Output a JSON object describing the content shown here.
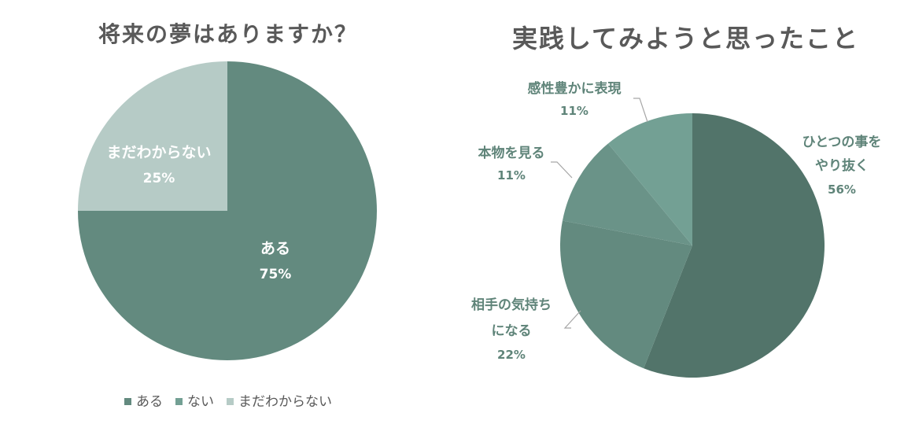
{
  "colors": {
    "title": "#595959",
    "pie1": [
      "#638a7f",
      "#73a094",
      "#b6cbc6"
    ],
    "pie2": [
      "#52746a",
      "#638a7f",
      "#6a9388",
      "#73a094"
    ],
    "label_dark": "#5f8479",
    "label_inside": "#ffffff"
  },
  "chart_data": [
    {
      "type": "pie",
      "title": "将来の夢はありますか？",
      "labels": [
        "ある",
        "ない",
        "まだわからない"
      ],
      "values": [
        75,
        0,
        25
      ],
      "value_labels": [
        "75%",
        "",
        "25%"
      ],
      "legend": [
        "ある",
        "ない",
        "まだわからない"
      ],
      "legend_position": "bottom"
    },
    {
      "type": "pie",
      "title": "実践してみようと思ったこと",
      "labels": [
        "ひとつの事をやり抜く",
        "相手の気持ちになる",
        "本物を見る",
        "感性豊かに表現"
      ],
      "label_lines": [
        [
          "ひとつの事を",
          "やり抜く"
        ],
        [
          "相手の気持ち",
          "になる"
        ],
        [
          "本物を見る"
        ],
        [
          "感性豊かに表現"
        ]
      ],
      "values": [
        56,
        22,
        11,
        11
      ],
      "value_labels": [
        "56%",
        "22%",
        "11%",
        "11%"
      ]
    }
  ]
}
